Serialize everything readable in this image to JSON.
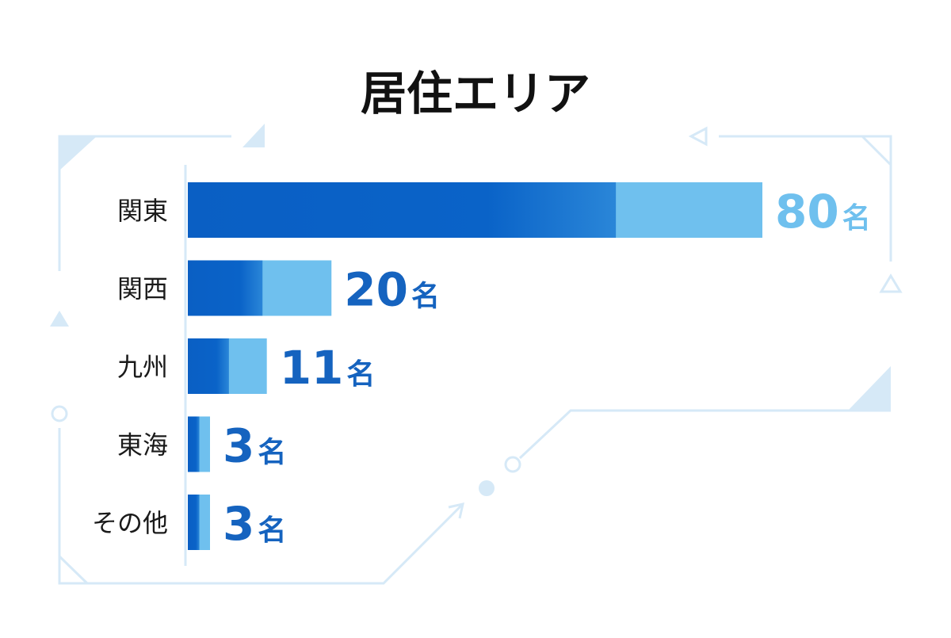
{
  "chart_data": {
    "type": "bar",
    "orientation": "horizontal",
    "title": "居住エリア",
    "categories": [
      "関東",
      "関西",
      "九州",
      "東海",
      "その他"
    ],
    "values": [
      80,
      20,
      11,
      3,
      3
    ],
    "value_labels": [
      {
        "number": "80",
        "unit": "名"
      },
      {
        "number": "20",
        "unit": "名"
      },
      {
        "number": "11",
        "unit": "名"
      },
      {
        "number": "3",
        "unit": "名"
      },
      {
        "number": "3",
        "unit": "名"
      }
    ],
    "xlim": [
      0,
      80
    ],
    "grid": false,
    "legend": "none",
    "colors": {
      "bar_dark": "#0a5fc4",
      "bar_mid": "#1f7fd6",
      "bar_light": "#6fc0ee",
      "label_highlight": "#6fc0ee",
      "label_default": "#1563bf",
      "decoration": "#d6e9f7",
      "title": "#111111",
      "category_text": "#1a1a1a"
    }
  }
}
